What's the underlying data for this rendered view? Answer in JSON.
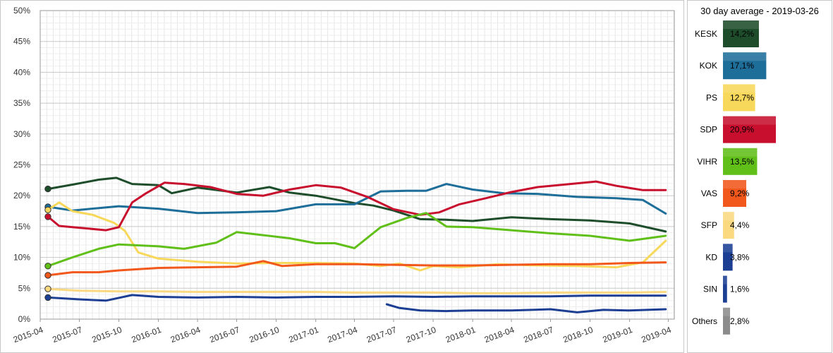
{
  "chart_data": [
    {
      "type": "line",
      "title": "",
      "xlabel": "",
      "ylabel": "",
      "ylim": [
        0,
        50
      ],
      "y_ticks": [
        "0%",
        "5%",
        "10%",
        "15%",
        "20%",
        "25%",
        "30%",
        "35%",
        "40%",
        "45%",
        "50%"
      ],
      "x_ticks": [
        "2015-04",
        "2015-07",
        "2015-10",
        "2016-01",
        "2016-04",
        "2016-07",
        "2016-10",
        "2017-01",
        "2017-04",
        "2017-07",
        "2017-10",
        "2018-01",
        "2018-04",
        "2018-07",
        "2018-10",
        "2019-01",
        "2019-04"
      ],
      "x_axis": "dates",
      "xlim": [
        "2015-04-01",
        "2019-04-15"
      ],
      "grid": true,
      "legend": "none",
      "series": [
        {
          "name": "KESK",
          "color": "#1e4d2b",
          "x": [
            "2015-04-19",
            "2015-06-15",
            "2015-08-15",
            "2015-09-25",
            "2015-11-01",
            "2016-01-01",
            "2016-02-01",
            "2016-04-01",
            "2016-07-01",
            "2016-09-15",
            "2016-11-01",
            "2017-01-01",
            "2017-04-01",
            "2017-05-15",
            "2017-07-01",
            "2017-09-01",
            "2017-11-01",
            "2018-01-01",
            "2018-04-01",
            "2018-07-01",
            "2018-10-01",
            "2019-01-01",
            "2019-03-26"
          ],
          "values": [
            21.1,
            21.8,
            22.6,
            22.9,
            21.9,
            21.7,
            20.4,
            21.3,
            20.5,
            21.4,
            20.5,
            20.0,
            18.8,
            18.4,
            17.6,
            16.2,
            16.1,
            15.9,
            16.5,
            16.2,
            16.0,
            15.5,
            14.2
          ]
        },
        {
          "name": "KOK",
          "color": "#1e6e9a",
          "x": [
            "2015-04-19",
            "2015-06-15",
            "2015-08-15",
            "2015-10-01",
            "2016-01-01",
            "2016-04-01",
            "2016-07-01",
            "2016-10-01",
            "2017-01-01",
            "2017-04-01",
            "2017-06-01",
            "2017-08-01",
            "2017-09-15",
            "2017-11-01",
            "2018-01-01",
            "2018-03-15",
            "2018-06-01",
            "2018-09-01",
            "2018-12-01",
            "2019-02-01",
            "2019-03-26"
          ],
          "values": [
            18.2,
            17.6,
            18.0,
            18.3,
            17.9,
            17.2,
            17.3,
            17.5,
            18.6,
            18.6,
            20.7,
            20.8,
            20.8,
            21.9,
            21.0,
            20.4,
            20.3,
            19.8,
            19.6,
            19.3,
            17.1
          ]
        },
        {
          "name": "PS",
          "color": "#f7d85a",
          "x": [
            "2015-04-19",
            "2015-05-15",
            "2015-06-15",
            "2015-08-01",
            "2015-09-20",
            "2015-10-15",
            "2015-11-15",
            "2016-01-01",
            "2016-04-01",
            "2016-07-01",
            "2016-10-01",
            "2017-01-01",
            "2017-04-01",
            "2017-06-01",
            "2017-07-15",
            "2017-09-01",
            "2017-10-01",
            "2017-12-01",
            "2018-03-01",
            "2018-06-01",
            "2018-09-01",
            "2018-12-01",
            "2019-02-01",
            "2019-03-26"
          ],
          "values": [
            17.7,
            18.9,
            17.5,
            16.9,
            15.6,
            14.3,
            10.8,
            9.8,
            9.3,
            9.0,
            9.1,
            9.1,
            9.0,
            8.6,
            9.0,
            7.9,
            8.6,
            8.4,
            8.9,
            8.7,
            8.6,
            8.4,
            9.2,
            12.7
          ]
        },
        {
          "name": "SDP",
          "color": "#c8102e",
          "x": [
            "2015-04-19",
            "2015-05-15",
            "2015-07-01",
            "2015-09-01",
            "2015-10-01",
            "2015-11-01",
            "2015-12-01",
            "2016-01-15",
            "2016-03-01",
            "2016-05-01",
            "2016-07-01",
            "2016-09-01",
            "2016-11-01",
            "2017-01-01",
            "2017-03-01",
            "2017-05-01",
            "2017-07-01",
            "2017-09-01",
            "2017-10-15",
            "2017-12-01",
            "2018-02-01",
            "2018-04-01",
            "2018-06-01",
            "2018-08-01",
            "2018-10-15",
            "2018-12-01",
            "2019-02-01",
            "2019-03-26"
          ],
          "values": [
            16.6,
            15.1,
            14.8,
            14.4,
            14.9,
            18.9,
            20.3,
            22.1,
            21.9,
            21.4,
            20.3,
            20.0,
            21.0,
            21.7,
            21.3,
            19.8,
            17.8,
            16.9,
            17.3,
            18.6,
            19.6,
            20.6,
            21.4,
            21.8,
            22.3,
            21.6,
            20.9,
            20.9
          ]
        },
        {
          "name": "VIHR",
          "color": "#61bf1a",
          "x": [
            "2015-04-19",
            "2015-06-15",
            "2015-08-15",
            "2015-10-01",
            "2016-01-01",
            "2016-03-01",
            "2016-05-15",
            "2016-07-01",
            "2016-09-01",
            "2016-11-01",
            "2017-01-01",
            "2017-02-15",
            "2017-04-01",
            "2017-06-01",
            "2017-08-01",
            "2017-09-15",
            "2017-11-01",
            "2018-01-01",
            "2018-04-01",
            "2018-07-01",
            "2018-10-01",
            "2019-01-01",
            "2019-03-26"
          ],
          "values": [
            8.6,
            10.0,
            11.4,
            12.1,
            11.8,
            11.4,
            12.4,
            14.1,
            13.6,
            13.1,
            12.3,
            12.3,
            11.5,
            14.9,
            16.4,
            17.2,
            15.0,
            14.9,
            14.4,
            13.9,
            13.5,
            12.7,
            13.5
          ]
        },
        {
          "name": "VAS",
          "color": "#f2581c",
          "x": [
            "2015-04-19",
            "2015-06-15",
            "2015-08-15",
            "2015-10-01",
            "2016-01-01",
            "2016-04-01",
            "2016-07-01",
            "2016-09-01",
            "2016-10-15",
            "2017-01-01",
            "2017-04-01",
            "2017-07-01",
            "2017-10-01",
            "2018-01-01",
            "2018-04-01",
            "2018-07-01",
            "2018-10-01",
            "2019-01-01",
            "2019-03-26"
          ],
          "values": [
            7.1,
            7.6,
            7.6,
            7.9,
            8.3,
            8.4,
            8.5,
            9.4,
            8.6,
            8.9,
            8.9,
            8.8,
            8.7,
            8.7,
            8.8,
            8.9,
            8.9,
            9.1,
            9.2
          ]
        },
        {
          "name": "SFP",
          "color": "#fad980",
          "x": [
            "2015-04-19",
            "2015-07-01",
            "2015-10-01",
            "2016-01-01",
            "2016-04-01",
            "2016-07-01",
            "2016-10-01",
            "2017-01-01",
            "2017-04-01",
            "2017-07-01",
            "2017-10-01",
            "2018-01-01",
            "2018-04-01",
            "2018-07-01",
            "2018-10-01",
            "2019-01-01",
            "2019-03-26"
          ],
          "values": [
            4.9,
            4.6,
            4.5,
            4.5,
            4.4,
            4.4,
            4.4,
            4.4,
            4.3,
            4.3,
            4.3,
            4.2,
            4.2,
            4.3,
            4.3,
            4.3,
            4.4
          ]
        },
        {
          "name": "KD",
          "color": "#1c3f94",
          "x": [
            "2015-04-19",
            "2015-07-01",
            "2015-09-01",
            "2015-11-01",
            "2016-01-01",
            "2016-04-01",
            "2016-07-01",
            "2016-10-01",
            "2017-01-01",
            "2017-04-01",
            "2017-07-01",
            "2017-10-01",
            "2018-01-01",
            "2018-04-01",
            "2018-07-01",
            "2018-10-01",
            "2019-01-01",
            "2019-03-26"
          ],
          "values": [
            3.5,
            3.2,
            3.0,
            3.9,
            3.6,
            3.5,
            3.6,
            3.5,
            3.6,
            3.6,
            3.7,
            3.6,
            3.7,
            3.7,
            3.7,
            3.8,
            3.8,
            3.8
          ]
        },
        {
          "name": "SIN",
          "color": "#1c3f94",
          "x": [
            "2017-06-15",
            "2017-07-15",
            "2017-09-01",
            "2017-11-01",
            "2018-01-01",
            "2018-04-01",
            "2018-07-01",
            "2018-09-01",
            "2018-11-01",
            "2019-01-01",
            "2019-03-26"
          ],
          "values": [
            2.4,
            1.8,
            1.4,
            1.3,
            1.4,
            1.4,
            1.6,
            1.1,
            1.5,
            1.4,
            1.6
          ]
        }
      ]
    },
    {
      "type": "bar",
      "title": "30 day average - 2019-03-26",
      "orientation": "horizontal",
      "categories": [
        "KESK",
        "KOK",
        "PS",
        "SDP",
        "VIHR",
        "VAS",
        "SFP",
        "KD",
        "SIN",
        "Others"
      ],
      "values": [
        14.2,
        17.1,
        12.7,
        20.9,
        13.5,
        9.2,
        4.4,
        3.8,
        1.6,
        2.8
      ],
      "value_labels": [
        "14,2%",
        "17,1%",
        "12,7%",
        "20,9%",
        "13,5%",
        "9,2%",
        "4,4%",
        "3,8%",
        "1,6%",
        "2,8%"
      ],
      "colors": [
        "#1e4d2b",
        "#1e6e9a",
        "#f7d85a",
        "#c8102e",
        "#61bf1a",
        "#f2581c",
        "#fad980",
        "#1c3f94",
        "#1c3f94",
        "#8c8c8c"
      ]
    }
  ]
}
